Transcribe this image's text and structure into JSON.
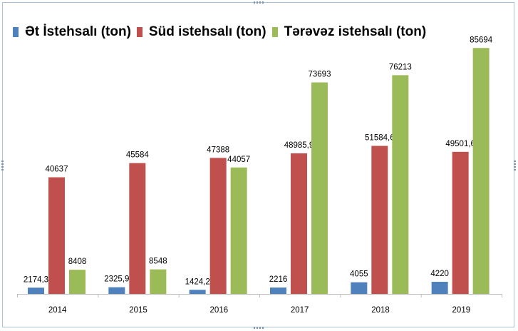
{
  "chart_data": {
    "type": "bar",
    "categories": [
      "2014",
      "2015",
      "2016",
      "2017",
      "2018",
      "2019"
    ],
    "series": [
      {
        "name": "Ət İstehsalı (ton)",
        "color": "#4f81bd",
        "values": [
          2174.3,
          2325.9,
          1424.2,
          2216,
          4055,
          4220
        ],
        "labels": [
          "2174,3",
          "2325,9",
          "1424,2",
          "2216",
          "4055",
          "4220"
        ]
      },
      {
        "name": "Süd istehsalı (ton)",
        "color": "#c0504d",
        "values": [
          40637,
          45584,
          47388,
          48985.9,
          51584.6,
          49501.6
        ],
        "labels": [
          "40637",
          "45584",
          "47388",
          "48985,9",
          "51584,6",
          "49501,6"
        ]
      },
      {
        "name": "Tərəvəz istehsalı (ton)",
        "color": "#9bbb59",
        "values": [
          8408,
          8548,
          44057,
          73693,
          76213,
          85694
        ],
        "labels": [
          "8408",
          "8548",
          "44057",
          "73693",
          "76213",
          "85694"
        ]
      }
    ],
    "ylim": [
      0,
      90000
    ],
    "grid": false,
    "legend_position": "top-left",
    "title": "",
    "xlabel": "",
    "ylabel": ""
  }
}
